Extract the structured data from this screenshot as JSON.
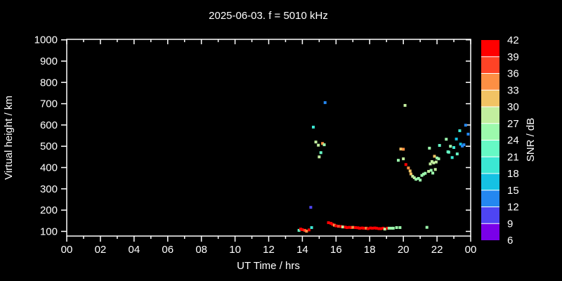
{
  "page": {
    "background": "#000000",
    "foreground": "#ffffff"
  },
  "chart_data": {
    "type": "scatter",
    "title": "2025-06-03. f = 5010 kHz",
    "xlabel": "UT Time / hrs",
    "ylabel": "Virtual height / km",
    "colorbar_label": "SNR / dB",
    "x_axis": {
      "range_hours": [
        0,
        24
      ],
      "major_tick_values": [
        0,
        2,
        4,
        6,
        8,
        10,
        12,
        14,
        16,
        18,
        20,
        22,
        24
      ],
      "major_tick_labels": [
        "00",
        "02",
        "04",
        "06",
        "08",
        "10",
        "12",
        "14",
        "16",
        "18",
        "20",
        "22",
        "00"
      ],
      "minor_tick_step_hours": 1
    },
    "y_axis": {
      "range_km": [
        100,
        1000
      ],
      "tick_values": [
        100,
        200,
        300,
        400,
        500,
        600,
        700,
        800,
        900,
        1000
      ],
      "tick_labels": [
        "100",
        "200",
        "300",
        "400",
        "500",
        "600",
        "700",
        "800",
        "900",
        "1000"
      ]
    },
    "colorbar": {
      "min_db": 6,
      "max_db": 42,
      "step_db": 3,
      "tick_labels_top_to_bottom": [
        "42",
        "39",
        "36",
        "33",
        "30",
        "27",
        "24",
        "21",
        "18",
        "15",
        "12",
        "9",
        "6"
      ],
      "segment_colors_low_to_high": [
        "#7a00e8",
        "#4e45f3",
        "#2487f0",
        "#15c1e3",
        "#3be7d3",
        "#66f9c5",
        "#9cf9ac",
        "#c2ee9e",
        "#f1c364",
        "#fd8f44",
        "#ff4326",
        "#ff0000"
      ]
    },
    "points_format": [
      "time_hours",
      "virtual_height_km",
      "snr_db"
    ],
    "points": [
      [
        13.8,
        105,
        22.5
      ],
      [
        13.9,
        111,
        40.5
      ],
      [
        14.0,
        108,
        40.5
      ],
      [
        14.15,
        105,
        37.5
      ],
      [
        14.25,
        101,
        34.5
      ],
      [
        14.4,
        107,
        40.5
      ],
      [
        14.5,
        213,
        10.5
      ],
      [
        14.55,
        118,
        19.5
      ],
      [
        14.65,
        590,
        19.5
      ],
      [
        14.8,
        520,
        28.5
      ],
      [
        14.95,
        505,
        28.5
      ],
      [
        15.0,
        450,
        28.5
      ],
      [
        15.1,
        470,
        22.5
      ],
      [
        15.2,
        513,
        34.5
      ],
      [
        15.3,
        507,
        25.5
      ],
      [
        15.35,
        705,
        13.5
      ],
      [
        15.55,
        141,
        40.5
      ],
      [
        15.7,
        138,
        40.5
      ],
      [
        15.8,
        133,
        40.5
      ],
      [
        15.9,
        129,
        34.5
      ],
      [
        16.0,
        126,
        40.5
      ],
      [
        16.15,
        124,
        37.5
      ],
      [
        16.3,
        123,
        40.5
      ],
      [
        16.4,
        121,
        28.5
      ],
      [
        16.55,
        120,
        40.5
      ],
      [
        16.65,
        118,
        40.5
      ],
      [
        16.8,
        119,
        40.5
      ],
      [
        16.9,
        118,
        40.5
      ],
      [
        17.0,
        119,
        34.5
      ],
      [
        17.15,
        118,
        40.5
      ],
      [
        17.3,
        117,
        40.5
      ],
      [
        17.4,
        115,
        40.5
      ],
      [
        17.55,
        116,
        40.5
      ],
      [
        17.65,
        115,
        40.5
      ],
      [
        17.8,
        115,
        34.5
      ],
      [
        17.9,
        113,
        40.5
      ],
      [
        18.05,
        116,
        40.5
      ],
      [
        18.15,
        115,
        40.5
      ],
      [
        18.3,
        116,
        40.5
      ],
      [
        18.4,
        115,
        40.5
      ],
      [
        18.55,
        113,
        40.5
      ],
      [
        18.65,
        113,
        40.5
      ],
      [
        18.8,
        115,
        40.5
      ],
      [
        18.9,
        111,
        28.5
      ],
      [
        19.05,
        115,
        40.5
      ],
      [
        19.15,
        115,
        25.5
      ],
      [
        19.3,
        115,
        25.5
      ],
      [
        19.4,
        115,
        25.5
      ],
      [
        19.6,
        118,
        25.5
      ],
      [
        19.7,
        434,
        25.5
      ],
      [
        19.8,
        118,
        25.5
      ],
      [
        19.85,
        487,
        31.5
      ],
      [
        20.0,
        486,
        34.5
      ],
      [
        20.0,
        441,
        28.5
      ],
      [
        20.1,
        692,
        28.5
      ],
      [
        20.15,
        414,
        40.5
      ],
      [
        20.3,
        398,
        34.5
      ],
      [
        20.4,
        384,
        31.5
      ],
      [
        20.45,
        370,
        31.5
      ],
      [
        20.55,
        359,
        28.5
      ],
      [
        20.65,
        352,
        28.5
      ],
      [
        20.75,
        345,
        25.5
      ],
      [
        20.9,
        349,
        25.5
      ],
      [
        21.0,
        341,
        25.5
      ],
      [
        21.1,
        363,
        25.5
      ],
      [
        21.2,
        369,
        25.5
      ],
      [
        21.3,
        373,
        25.5
      ],
      [
        21.4,
        119,
        25.5
      ],
      [
        21.5,
        382,
        28.5
      ],
      [
        21.55,
        491,
        25.5
      ],
      [
        21.6,
        417,
        28.5
      ],
      [
        21.65,
        387,
        25.5
      ],
      [
        21.7,
        428,
        28.5
      ],
      [
        21.75,
        374,
        25.5
      ],
      [
        21.8,
        422,
        28.5
      ],
      [
        21.85,
        453,
        31.5
      ],
      [
        21.9,
        391,
        28.5
      ],
      [
        21.95,
        426,
        28.5
      ],
      [
        22.0,
        445,
        25.5
      ],
      [
        22.1,
        441,
        25.5
      ],
      [
        22.15,
        504,
        22.5
      ],
      [
        22.55,
        533,
        25.5
      ],
      [
        22.65,
        474,
        22.5
      ],
      [
        22.7,
        472,
        22.5
      ],
      [
        22.8,
        500,
        25.5
      ],
      [
        22.9,
        447,
        19.5
      ],
      [
        23.0,
        494,
        19.5
      ],
      [
        23.15,
        534,
        16.5
      ],
      [
        23.2,
        464,
        22.5
      ],
      [
        23.35,
        573,
        19.5
      ],
      [
        23.4,
        510,
        16.5
      ],
      [
        23.5,
        501,
        13.5
      ],
      [
        23.6,
        507,
        13.5
      ],
      [
        23.7,
        599,
        13.5
      ],
      [
        23.85,
        557,
        13.5
      ]
    ]
  }
}
